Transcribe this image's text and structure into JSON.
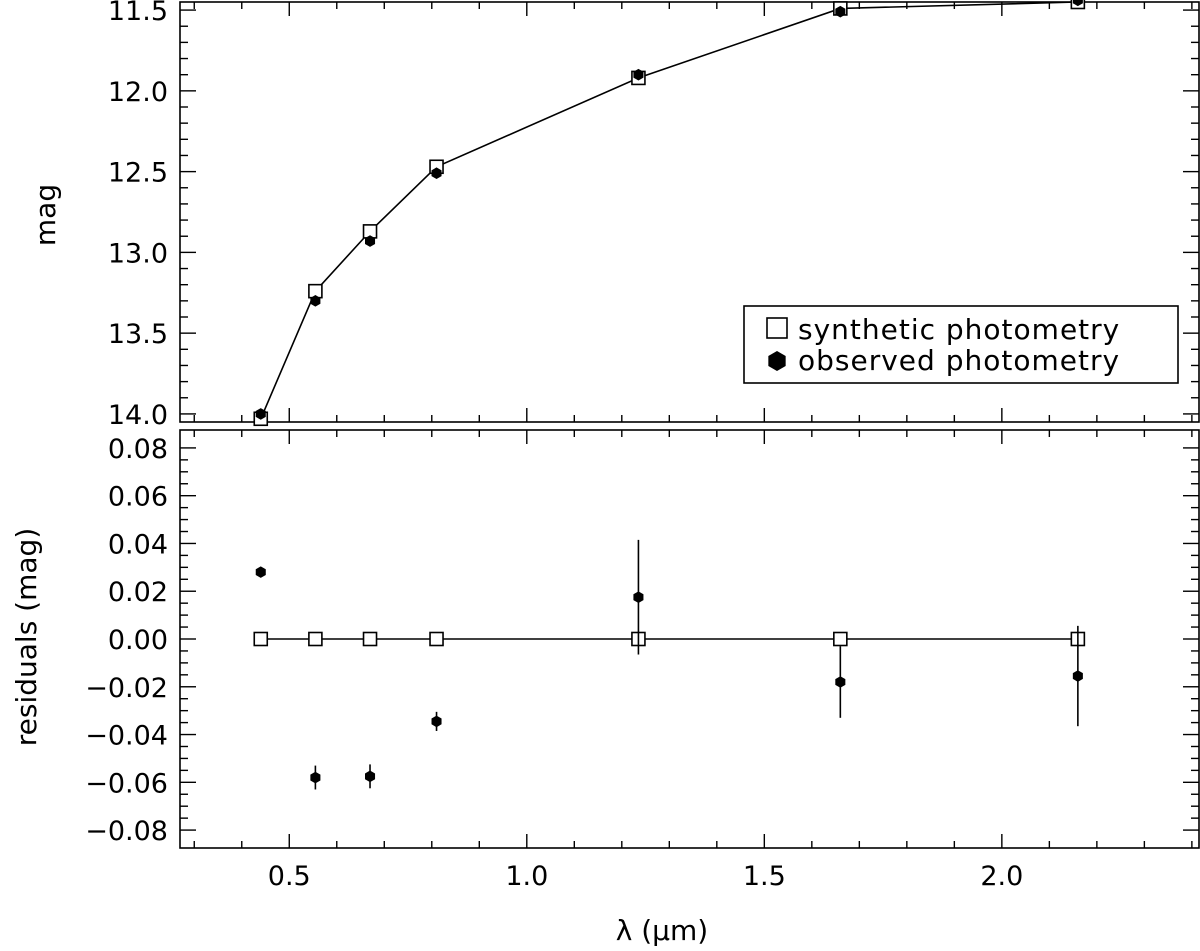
{
  "chart_data": [
    {
      "type": "line",
      "panel": "top",
      "title": "",
      "xlabel": "",
      "ylabel": "mag",
      "ylim": [
        14.05,
        11.45
      ],
      "y_inverted": true,
      "xlim": [
        0.27,
        2.415
      ],
      "yticks": [
        11.5,
        12.0,
        12.5,
        13.0,
        13.5,
        14.0
      ],
      "ytick_labels": [
        "11.5",
        "12.0",
        "12.5",
        "13.0",
        "13.5",
        "14.0"
      ],
      "series": [
        {
          "name": "synthetic photometry",
          "marker": "open-square",
          "connected": true,
          "x": [
            0.44,
            0.555,
            0.67,
            0.81,
            1.235,
            1.66,
            2.16
          ],
          "y": [
            14.03,
            13.24,
            12.87,
            12.47,
            11.92,
            11.49,
            11.45
          ]
        },
        {
          "name": "observed photometry",
          "marker": "filled-hexagon",
          "connected": false,
          "x": [
            0.44,
            0.555,
            0.67,
            0.81,
            1.235,
            1.66,
            2.16
          ],
          "y": [
            14.0,
            13.3,
            12.93,
            12.51,
            11.9,
            11.51,
            11.44
          ]
        }
      ],
      "legend_position": "lower-right"
    },
    {
      "type": "scatter",
      "panel": "bottom",
      "title": "",
      "xlabel": "λ (μm)",
      "ylabel": "residuals (mag)",
      "xlim": [
        0.27,
        2.415
      ],
      "ylim": [
        -0.0875,
        0.0875
      ],
      "xticks": [
        0.5,
        1.0,
        1.5,
        2.0
      ],
      "xtick_labels": [
        "0.5",
        "1.0",
        "1.5",
        "2.0"
      ],
      "yticks": [
        0.08,
        0.06,
        0.04,
        0.02,
        0.0,
        -0.02,
        -0.04,
        -0.06,
        -0.08
      ],
      "ytick_labels": [
        "0.08",
        "0.06",
        "0.04",
        "0.02",
        "0.00",
        "−0.02",
        "−0.04",
        "−0.06",
        "−0.08"
      ],
      "series": [
        {
          "name": "synthetic photometry",
          "marker": "open-square",
          "connected": true,
          "x": [
            0.44,
            0.555,
            0.67,
            0.81,
            1.235,
            1.66,
            2.16
          ],
          "y": [
            0,
            0,
            0,
            0,
            0,
            0,
            0
          ]
        },
        {
          "name": "observed photometry",
          "marker": "filled-hexagon",
          "connected": false,
          "x": [
            0.44,
            0.555,
            0.67,
            0.81,
            1.235,
            1.66,
            2.16
          ],
          "y": [
            0.028,
            -0.058,
            -0.0575,
            -0.0345,
            0.0175,
            -0.018,
            -0.0155
          ],
          "yerr": [
            0.0,
            0.005,
            0.005,
            0.004,
            0.024,
            0.015,
            0.021
          ]
        }
      ]
    }
  ],
  "legend": {
    "items": [
      {
        "label": "synthetic photometry",
        "marker": "open-square"
      },
      {
        "label": "observed photometry",
        "marker": "filled-hexagon"
      }
    ]
  }
}
